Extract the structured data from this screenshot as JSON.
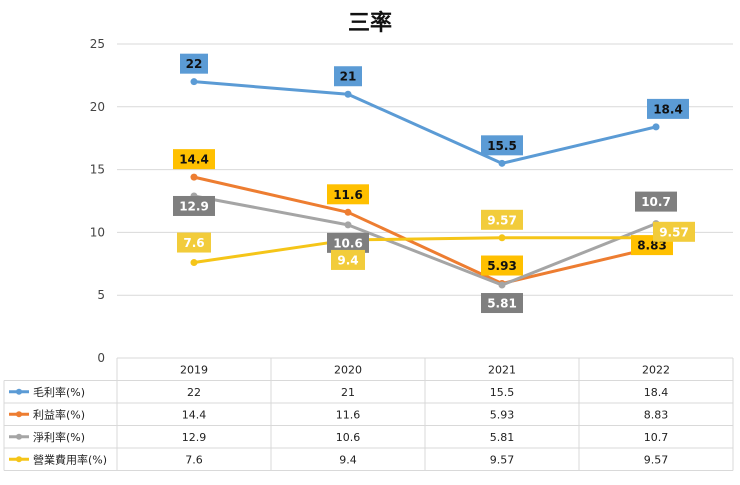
{
  "chart_data": {
    "type": "line",
    "title": "三率",
    "categories": [
      "2019",
      "2020",
      "2021",
      "2022"
    ],
    "ylim": [
      0,
      25
    ],
    "yticks": [
      0,
      5,
      10,
      15,
      20,
      25
    ],
    "grid": true,
    "legend_position": "data-table-left",
    "series": [
      {
        "name": "毛利率(%)",
        "color": "#5B9BD5",
        "values": [
          22,
          21,
          15.5,
          18.4
        ],
        "labels": [
          "22",
          "21",
          "15.5",
          "18.4"
        ],
        "label_bg": "#5B9BD5",
        "label_fg": "#111111"
      },
      {
        "name": "利益率(%)",
        "color": "#ED7D31",
        "values": [
          14.4,
          11.6,
          5.93,
          8.83
        ],
        "labels": [
          "14.4",
          "11.6",
          "5.93",
          "8.83"
        ],
        "label_bg": "#FFC000",
        "label_fg": "#111111"
      },
      {
        "name": "淨利率(%)",
        "color": "#A5A5A5",
        "values": [
          12.9,
          10.6,
          5.81,
          10.7
        ],
        "labels": [
          "12.9",
          "10.6",
          "5.81",
          "10.7"
        ],
        "label_bg": "#7F7F7F",
        "label_fg": "#ffffff"
      },
      {
        "name": "營業費用率(%)",
        "color": "#F5C518",
        "values": [
          7.6,
          9.4,
          9.57,
          9.57
        ],
        "labels": [
          "7.6",
          "9.4",
          "9.57",
          "9.57"
        ],
        "label_bg": "#F2CC3B",
        "label_fg": "#ffffff"
      }
    ],
    "table": {
      "header": [
        "2019",
        "2020",
        "2021",
        "2022"
      ],
      "rows": [
        [
          "22",
          "21",
          "15.5",
          "18.4"
        ],
        [
          "14.4",
          "11.6",
          "5.93",
          "8.83"
        ],
        [
          "12.9",
          "10.6",
          "5.81",
          "10.7"
        ],
        [
          "7.6",
          "9.4",
          "9.57",
          "9.57"
        ]
      ]
    }
  }
}
